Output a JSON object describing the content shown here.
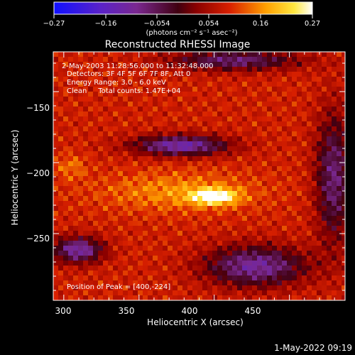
{
  "colorbar": {
    "ticks": [
      "−0.27",
      "−0.16",
      "−0.054",
      "0.054",
      "0.16",
      "0.27"
    ],
    "unit_label": "(photons cm⁻² s⁻¹ asec⁻²)"
  },
  "chart_data": {
    "type": "heatmap",
    "title": "Reconstructed RHESSI Image",
    "xlabel": "Heliocentric X (arcsec)",
    "ylabel": "Heliocentric Y (arcsec)",
    "xlim": [
      293,
      487
    ],
    "ylim": [
      -297,
      -122
    ],
    "x_ticks": [
      300,
      350,
      400,
      450
    ],
    "y_ticks": [
      -150,
      -200,
      -250
    ],
    "x_tick_labels": [
      "300",
      "350",
      "400",
      "450"
    ],
    "y_tick_labels": [
      "−150",
      "−200",
      "−250"
    ],
    "clim": [
      -0.27,
      0.27
    ],
    "colormap": "rainbow_blue_to_white",
    "peak": {
      "x": 400,
      "y": -224,
      "value": 0.27
    },
    "grid": false,
    "annotations": [
      "2-May-2003 11:28:56.000 to 11:32:48.000",
      "Detectors: 3F 4F 5F 6F 7F 8F, Att 0",
      "Energy Range: 3.0 - 6.0 keV",
      "Clean     Total counts: 1.47E+04"
    ],
    "peak_label": "Position of Peak = [400,-224]"
  },
  "footer": {
    "timestamp": "1-May-2022 09:19"
  }
}
